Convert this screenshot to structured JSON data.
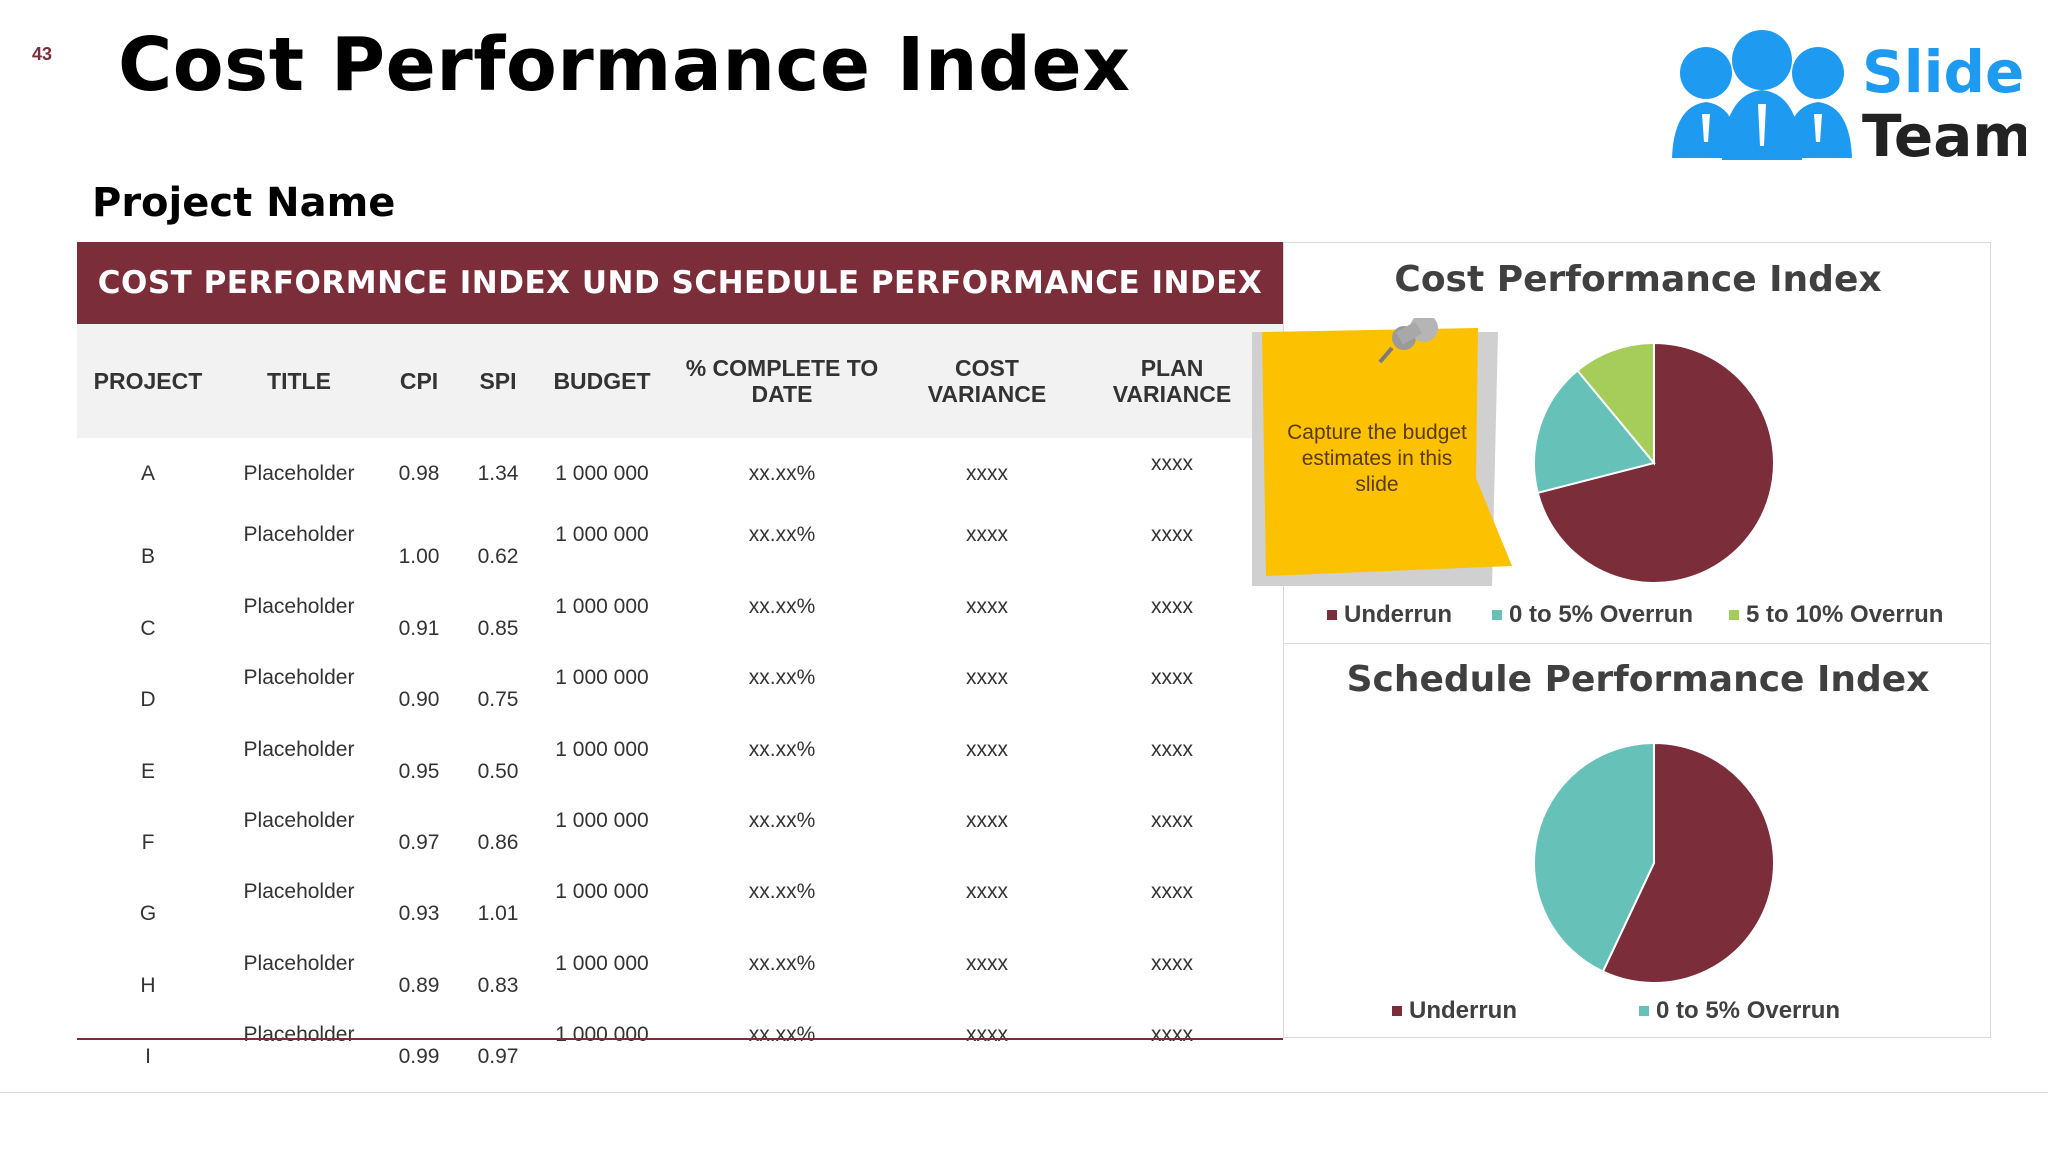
{
  "slide_number": "43",
  "title": "Cost Performance Index",
  "logo": {
    "line1": "Slide",
    "line2": "Team"
  },
  "project_name": "Project Name",
  "table": {
    "banner": "COST PERFORMNCE INDEX UND SCHEDULE PERFORMANCE INDEX",
    "headers": {
      "project": "PROJECT",
      "title": "TITLE",
      "cpi": "CPI",
      "spi": "SPI",
      "budget": "BUDGET",
      "complete_l1": "% COMPLETE TO",
      "complete_l2": "DATE",
      "cost_l1": "COST",
      "cost_l2": "VARIANCE",
      "plan_l1": "PLAN",
      "plan_l2": "VARIANCE"
    },
    "rows": [
      {
        "project": "A",
        "title": "Placeholder",
        "cpi": "0.98",
        "spi": "1.34",
        "budget": "1 000 000",
        "complete": "xx.xx%",
        "cost": "xxxx",
        "plan": "xxxx"
      },
      {
        "project": "B",
        "title": "Placeholder",
        "cpi": "1.00",
        "spi": "0.62",
        "budget": "1 000 000",
        "complete": "xx.xx%",
        "cost": "xxxx",
        "plan": "xxxx"
      },
      {
        "project": "C",
        "title": "Placeholder",
        "cpi": "0.91",
        "spi": "0.85",
        "budget": "1 000 000",
        "complete": "xx.xx%",
        "cost": "xxxx",
        "plan": "xxxx"
      },
      {
        "project": "D",
        "title": "Placeholder",
        "cpi": "0.90",
        "spi": "0.75",
        "budget": "1 000 000",
        "complete": "xx.xx%",
        "cost": "xxxx",
        "plan": "xxxx"
      },
      {
        "project": "E",
        "title": "Placeholder",
        "cpi": "0.95",
        "spi": "0.50",
        "budget": "1 000 000",
        "complete": "xx.xx%",
        "cost": "xxxx",
        "plan": "xxxx"
      },
      {
        "project": "F",
        "title": "Placeholder",
        "cpi": "0.97",
        "spi": "0.86",
        "budget": "1 000 000",
        "complete": "xx.xx%",
        "cost": "xxxx",
        "plan": "xxxx"
      },
      {
        "project": "G",
        "title": "Placeholder",
        "cpi": "0.93",
        "spi": "1.01",
        "budget": "1 000 000",
        "complete": "xx.xx%",
        "cost": "xxxx",
        "plan": "xxxx"
      },
      {
        "project": "H",
        "title": "Placeholder",
        "cpi": "0.89",
        "spi": "0.83",
        "budget": "1 000 000",
        "complete": "xx.xx%",
        "cost": "xxxx",
        "plan": "xxxx"
      },
      {
        "project": "I",
        "title": "Placeholder",
        "cpi": "0.99",
        "spi": "0.97",
        "budget": "1 000 000",
        "complete": "xx.xx%",
        "cost": "xxxx",
        "plan": "xxxx"
      }
    ]
  },
  "note": {
    "text": "Capture the budget estimates in this slide",
    "icon": "pushpin-icon"
  },
  "colors": {
    "maroon": "#7b2d3a",
    "teal": "#66c2b8",
    "green": "#a6cc5a",
    "note_yellow": "#fcc100",
    "logo_blue": "#1e9bf0"
  },
  "chart_data": [
    {
      "type": "pie",
      "title": "Cost Performance Index",
      "categories": [
        "Underrun",
        "0 to 5% Overrun",
        "5 to 10% Overrun"
      ],
      "values": [
        71,
        18,
        11
      ],
      "colors": [
        "#7b2d3a",
        "#66c2b8",
        "#a6cc5a"
      ],
      "legend": "bottom"
    },
    {
      "type": "pie",
      "title": "Schedule Performance Index",
      "categories": [
        "Underrun",
        "0 to 5% Overrun"
      ],
      "values": [
        57,
        43
      ],
      "colors": [
        "#7b2d3a",
        "#66c2b8"
      ],
      "legend": "bottom"
    }
  ]
}
